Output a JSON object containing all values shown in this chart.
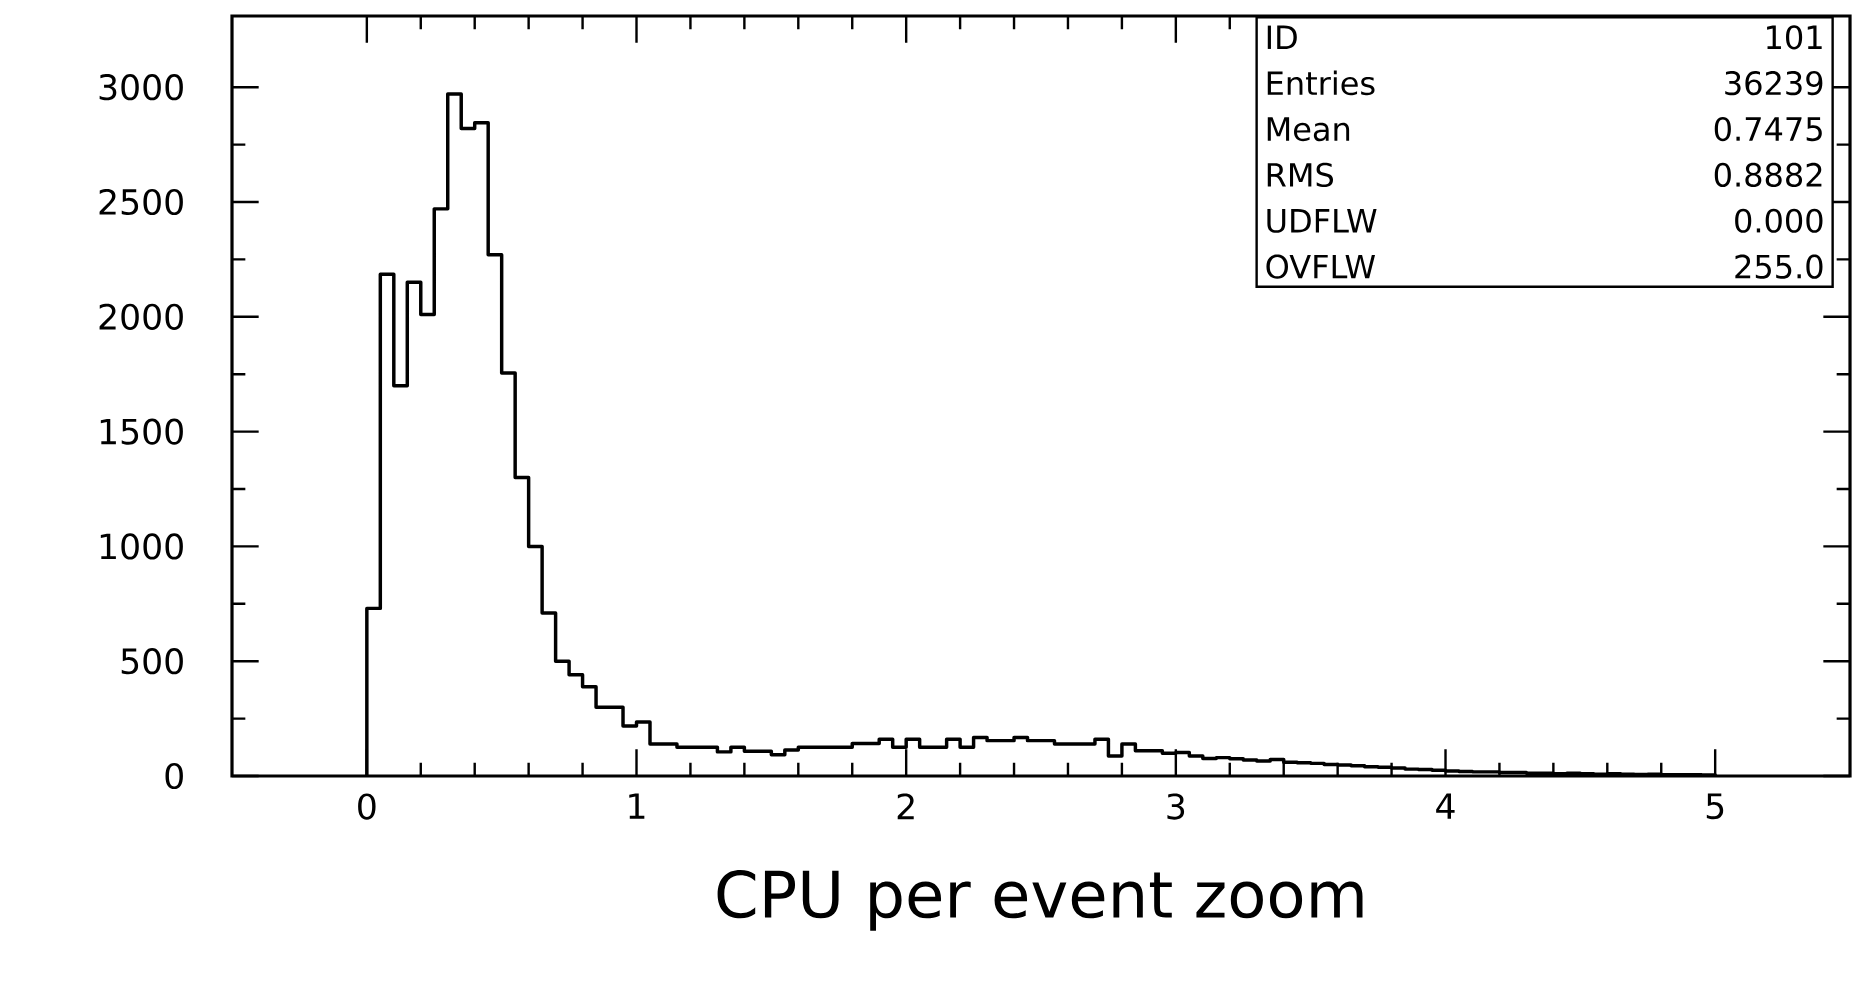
{
  "chart_data": {
    "type": "histogram",
    "xlabel": "CPU per event zoom",
    "bins": [
      0,
      0.05,
      0.1,
      0.15,
      0.2,
      0.25,
      0.3,
      0.35,
      0.4,
      0.45,
      0.5,
      0.55,
      0.6,
      0.65,
      0.7,
      0.75,
      0.8,
      0.85,
      0.9,
      0.95,
      1,
      1.05,
      1.1,
      1.15,
      1.2,
      1.25,
      1.3,
      1.35,
      1.4,
      1.45,
      1.5,
      1.55,
      1.6,
      1.65,
      1.7,
      1.75,
      1.8,
      1.85,
      1.9,
      1.95,
      2,
      2.05,
      2.1,
      2.15,
      2.2,
      2.25,
      2.3,
      2.35,
      2.4,
      2.45,
      2.5,
      2.55,
      2.6,
      2.65,
      2.7,
      2.75,
      2.8,
      2.85,
      2.9,
      2.95,
      3,
      3.05,
      3.1,
      3.15,
      3.2,
      3.25,
      3.3,
      3.35,
      3.4,
      3.45,
      3.5,
      3.55,
      3.6,
      3.65,
      3.7,
      3.75,
      3.8,
      3.85,
      3.9,
      3.95,
      4,
      4.05,
      4.1,
      4.15,
      4.2,
      4.25,
      4.3,
      4.35,
      4.4,
      4.45,
      4.5,
      4.55,
      4.6,
      4.65,
      4.7,
      4.75,
      4.8,
      4.85,
      4.9,
      4.95,
      5
    ],
    "values": [
      730,
      2185,
      1700,
      2150,
      2010,
      2470,
      2970,
      2820,
      2845,
      2270,
      1755,
      1300,
      1000,
      710,
      500,
      441,
      389,
      299,
      299,
      218,
      235,
      139,
      139,
      125,
      125,
      125,
      105,
      125,
      108,
      108,
      93,
      113,
      125,
      125,
      125,
      125,
      142,
      142,
      160,
      125,
      160,
      125,
      125,
      160,
      125,
      168,
      154,
      154,
      168,
      154,
      154,
      139,
      139,
      139,
      160,
      87,
      139,
      110,
      110,
      99,
      102,
      87,
      76,
      80,
      75,
      70,
      65,
      72,
      60,
      58,
      55,
      50,
      48,
      45,
      40,
      38,
      35,
      30,
      28,
      25,
      22,
      20,
      18,
      18,
      15,
      15,
      12,
      12,
      10,
      12,
      10,
      8,
      10,
      8,
      7,
      8,
      6,
      5,
      5,
      4
    ],
    "color": "#000000",
    "xlim": [
      -0.5,
      5.5
    ],
    "ylim": [
      0,
      3310
    ],
    "xticks": [
      0,
      1,
      2,
      3,
      4,
      5
    ],
    "yticks": [
      0,
      500,
      1000,
      1500,
      2000,
      2500,
      3000
    ],
    "annotations": [
      "ID",
      "101",
      "Entries",
      "36239",
      "Mean",
      "0.7475",
      "RMS",
      "0.8882",
      "UDFLW",
      "0.000",
      "OVFLW",
      "255.0"
    ]
  }
}
